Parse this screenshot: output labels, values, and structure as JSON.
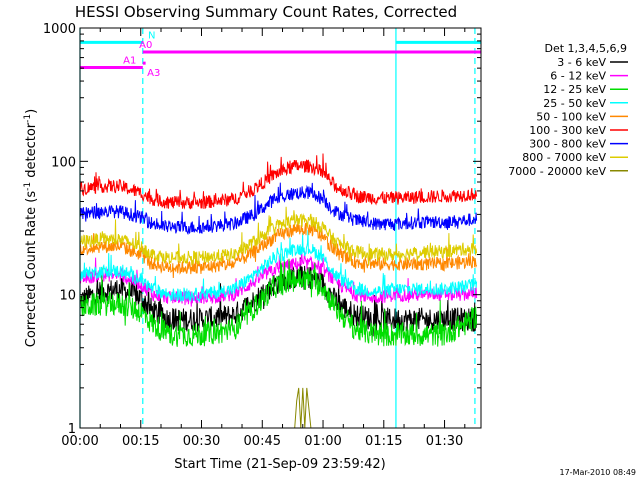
{
  "chart_data": {
    "type": "line",
    "title": "HESSI Observing Summary Count Rates, Corrected",
    "xlabel": "Start Time (21-Sep-09 23:59:42)",
    "ylabel": "Corrected Count Rate (s",
    "ylabel_sup1": "-1",
    "ylabel_mid": " detector",
    "ylabel_sup2": "-1",
    "ylabel_end": ")",
    "x_unit": "minutes from start",
    "xlim": [
      0,
      99
    ],
    "ylim": [
      1,
      1000
    ],
    "y_scale": "log",
    "x_ticks": [
      {
        "x": 0,
        "label": "00:00"
      },
      {
        "x": 15,
        "label": "00:15"
      },
      {
        "x": 30,
        "label": "00:30"
      },
      {
        "x": 45,
        "label": "00:45"
      },
      {
        "x": 60,
        "label": "01:00"
      },
      {
        "x": 75,
        "label": "01:15"
      },
      {
        "x": 90,
        "label": "01:30"
      }
    ],
    "y_ticks": [
      {
        "y": 1,
        "label": "1"
      },
      {
        "y": 10,
        "label": "10"
      },
      {
        "y": 100,
        "label": "100"
      },
      {
        "y": 1000,
        "label": "1000"
      }
    ],
    "legend_title": "Det 1,3,4,5,6,9",
    "legend_position": "right",
    "series": [
      {
        "name": "3 - 6 keV",
        "color": "#000000",
        "x": [
          0,
          5,
          10,
          15,
          18,
          22,
          30,
          38,
          43,
          48,
          53,
          57,
          60,
          63,
          68,
          73,
          78,
          85,
          90,
          95,
          98
        ],
        "y": [
          9,
          10.5,
          11,
          9.5,
          7.5,
          6.5,
          6.5,
          7,
          9,
          12,
          13.5,
          13.5,
          12,
          9,
          7,
          6.5,
          6.5,
          6.5,
          6.5,
          6.5,
          6.5
        ]
      },
      {
        "name": "6 - 12 keV",
        "color": "#ff00ff",
        "x": [
          0,
          5,
          10,
          15,
          18,
          22,
          30,
          38,
          43,
          48,
          53,
          57,
          60,
          63,
          68,
          73,
          78,
          85,
          90,
          95,
          98
        ],
        "y": [
          13,
          14,
          14,
          12,
          10,
          9.5,
          9.5,
          10,
          12.5,
          15.5,
          17,
          17,
          15.5,
          12.5,
          10,
          9.5,
          10,
          10,
          10,
          10,
          10.5
        ]
      },
      {
        "name": "12 - 25 keV",
        "color": "#00dd00",
        "x": [
          0,
          5,
          10,
          15,
          18,
          22,
          30,
          38,
          43,
          48,
          53,
          57,
          60,
          63,
          68,
          73,
          78,
          85,
          90,
          95,
          98
        ],
        "y": [
          8,
          8.5,
          8.5,
          7.5,
          6,
          5,
          5,
          5.5,
          8,
          11.5,
          13,
          13,
          11.5,
          8,
          5.5,
          5,
          5,
          5,
          5,
          6,
          7
        ]
      },
      {
        "name": "25 - 50 keV",
        "color": "#00ffff",
        "x": [
          0,
          5,
          10,
          15,
          18,
          22,
          30,
          38,
          43,
          48,
          53,
          57,
          60,
          63,
          68,
          73,
          78,
          85,
          90,
          95,
          98
        ],
        "y": [
          14,
          15,
          15,
          13,
          11,
          10,
          10,
          11,
          14,
          19,
          22,
          22,
          19,
          14,
          11,
          10.5,
          11,
          11,
          11,
          11.5,
          12
        ]
      },
      {
        "name": "50 - 100 keV",
        "color": "#ff8800",
        "x": [
          0,
          5,
          10,
          15,
          18,
          22,
          30,
          38,
          43,
          48,
          53,
          57,
          60,
          63,
          68,
          73,
          78,
          85,
          90,
          95,
          98
        ],
        "y": [
          22,
          23,
          23,
          20,
          17,
          16,
          16,
          17,
          21,
          27,
          31,
          31,
          27,
          21,
          17.5,
          17,
          17,
          17,
          17,
          17.5,
          18
        ]
      },
      {
        "name": "100 - 300 keV",
        "color": "#ff0000",
        "x": [
          0,
          5,
          10,
          15,
          18,
          22,
          30,
          38,
          43,
          48,
          53,
          57,
          60,
          63,
          68,
          73,
          78,
          85,
          90,
          95,
          98
        ],
        "y": [
          62,
          65,
          65,
          58,
          52,
          49,
          49,
          52,
          62,
          80,
          92,
          92,
          82,
          65,
          55,
          53,
          53,
          54,
          55,
          56,
          57
        ]
      },
      {
        "name": "300 - 800 keV",
        "color": "#0000ff",
        "x": [
          0,
          5,
          10,
          15,
          18,
          22,
          30,
          38,
          43,
          48,
          53,
          57,
          60,
          63,
          68,
          73,
          78,
          85,
          90,
          95,
          98
        ],
        "y": [
          40,
          42,
          42,
          38,
          34,
          32,
          32,
          34,
          40,
          52,
          58,
          58,
          52,
          42,
          36,
          34,
          34,
          35,
          35,
          36,
          37
        ]
      },
      {
        "name": "800 - 7000 keV",
        "color": "#ddcc00",
        "x": [
          0,
          5,
          10,
          15,
          18,
          22,
          30,
          38,
          43,
          48,
          53,
          57,
          60,
          63,
          68,
          73,
          78,
          85,
          90,
          95,
          98
        ],
        "y": [
          25,
          26,
          26,
          23,
          20,
          19,
          19,
          20,
          25,
          32,
          36,
          36,
          32,
          25,
          21,
          20,
          20,
          21,
          21,
          22,
          22
        ]
      },
      {
        "name": "7000 - 20000 keV",
        "color": "#888800",
        "x": [
          52,
          53,
          53.5,
          54,
          54.5,
          55,
          55.5,
          56,
          57,
          58
        ],
        "y": [
          1,
          1,
          1.6,
          2,
          1,
          2,
          1,
          2,
          1,
          1
        ]
      }
    ],
    "mode_bars": [
      {
        "label": "N",
        "color": "#00ffff",
        "ranges": [
          [
            0,
            15.5
          ],
          [
            78,
            99
          ]
        ],
        "y": 780
      },
      {
        "label": "A0",
        "color": "#ff00ff",
        "ranges": [
          [
            15.5,
            99
          ]
        ],
        "y": 660
      },
      {
        "label": "A1",
        "color": "#ff00ff",
        "ranges": [
          [
            0,
            15.5
          ]
        ],
        "y": 505
      },
      {
        "label": "A3",
        "color": "#ff00ff",
        "ranges": [
          [
            15.5,
            16.2
          ]
        ],
        "y": 545
      }
    ],
    "vlines": [
      {
        "x": 0,
        "style": "solid",
        "color": "#00ffff"
      },
      {
        "x": 15.5,
        "style": "dashed",
        "color": "#00ffff"
      },
      {
        "x": 78,
        "style": "solid",
        "color": "#00ffff"
      },
      {
        "x": 97.5,
        "style": "dashed",
        "color": "#00ffff"
      }
    ]
  },
  "footer": {
    "timestamp": "17-Mar-2010 08:49"
  }
}
